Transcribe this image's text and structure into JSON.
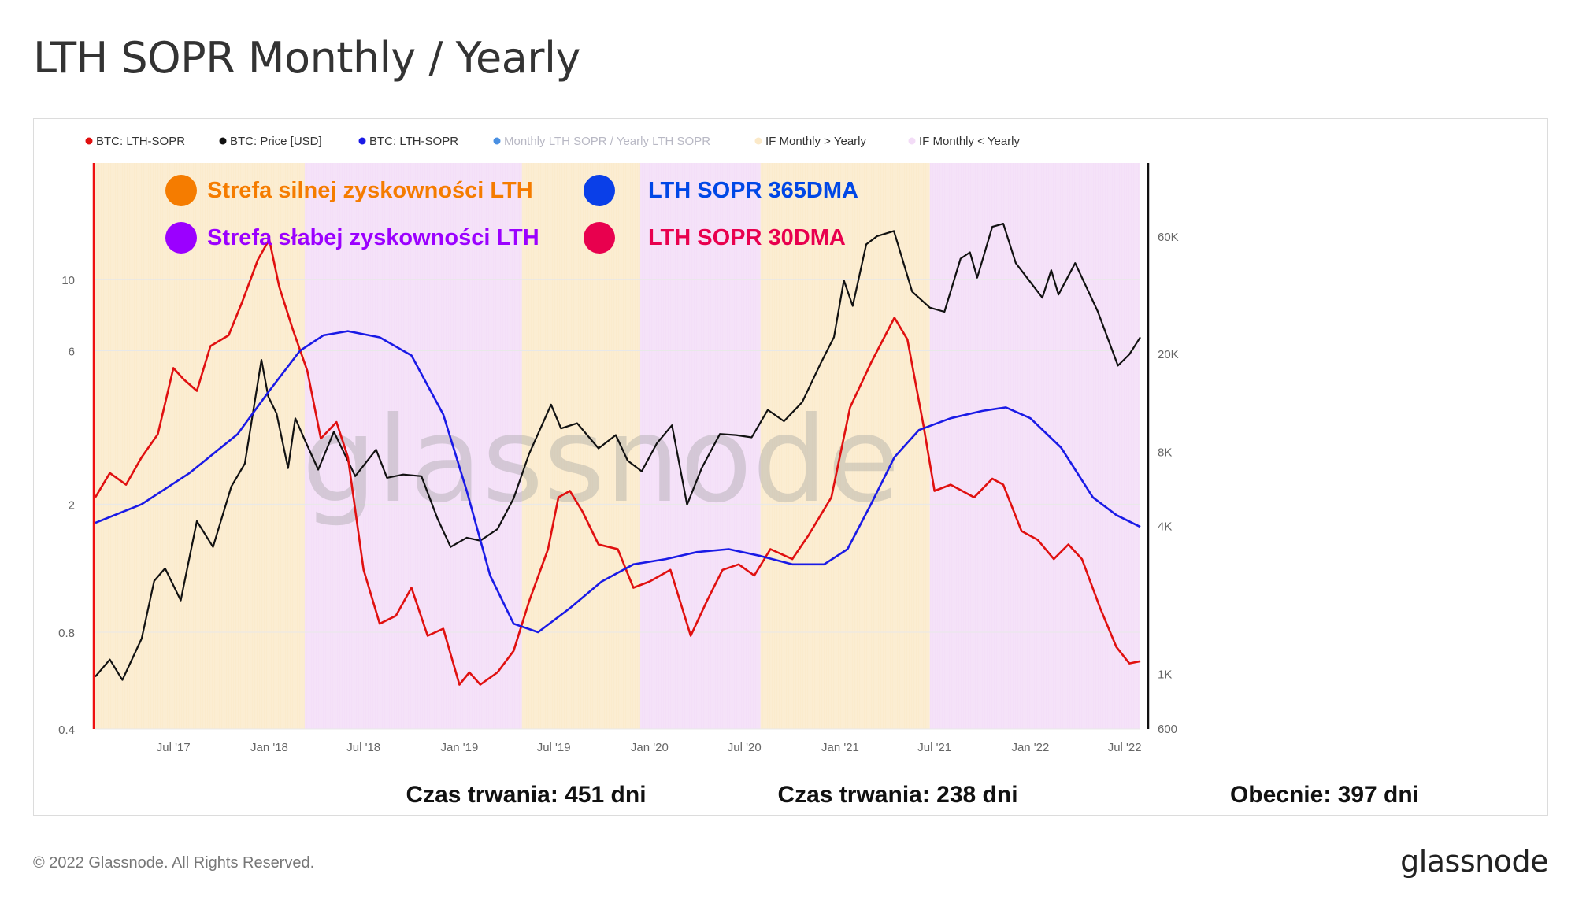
{
  "title": "LTH SOPR Monthly / Yearly",
  "footer": {
    "copyright": "© 2022 Glassnode. All Rights Reserved.",
    "logo": "glassnode"
  },
  "watermark": "glassnode",
  "legend": [
    {
      "label": "BTC: LTH-SOPR",
      "color": "#e01010",
      "muted": false
    },
    {
      "label": "BTC: Price [USD]",
      "color": "#111111",
      "muted": false
    },
    {
      "label": "BTC: LTH-SOPR",
      "color": "#1a1ae6",
      "muted": false
    },
    {
      "label": "Monthly LTH SOPR / Yearly LTH SOPR",
      "color": "#4a90e2",
      "muted": true
    },
    {
      "label": "IF Monthly > Yearly",
      "color": "#fbe9c8",
      "muted": false
    },
    {
      "label": "IF Monthly < Yearly",
      "color": "#f3dcf7",
      "muted": false
    }
  ],
  "annotations": {
    "zones": [
      {
        "label": "Strefa silnej zyskowności LTH",
        "color": "#f57c00"
      },
      {
        "label": "Strefa słabej zyskowności LTH",
        "color": "#9b00ff"
      }
    ],
    "lines": [
      {
        "label": "LTH SOPR 365DMA",
        "color": "#0047e6",
        "dot": "#0a3fe8"
      },
      {
        "label": "LTH SOPR 30DMA",
        "color": "#e8004e",
        "dot": "#e8004e"
      }
    ],
    "durations": [
      "Czas trwania: 451 dni",
      "Czas trwania: 238 dni",
      "Obecnie: 397 dni"
    ]
  },
  "chart_data": {
    "type": "line",
    "x_ticks": [
      "Jul '17",
      "Jan '18",
      "Jul '18",
      "Jan '19",
      "Jul '19",
      "Jan '20",
      "Jul '20",
      "Jan '21",
      "Jul '21",
      "Jan '22",
      "Jul '22"
    ],
    "y_left_ticks": [
      "10",
      "6",
      "2",
      "0.8",
      "0.4"
    ],
    "y_right_ticks": [
      "60K",
      "20K",
      "8K",
      "4K",
      "1K",
      "600"
    ],
    "y_left_scale": "log",
    "y_right_scale": "log",
    "x_range": [
      "2017-02-01",
      "2022-07-31"
    ],
    "background_regimes": [
      {
        "start": "2017-02-01",
        "end": "2018-03-10",
        "state": "IF Monthly > Yearly"
      },
      {
        "start": "2018-03-10",
        "end": "2019-05-01",
        "state": "IF Monthly < Yearly"
      },
      {
        "start": "2019-05-01",
        "end": "2019-12-14",
        "state": "IF Monthly > Yearly"
      },
      {
        "start": "2019-12-14",
        "end": "2020-08-01",
        "state": "IF Monthly < Yearly"
      },
      {
        "start": "2020-08-01",
        "end": "2021-06-22",
        "state": "IF Monthly > Yearly"
      },
      {
        "start": "2021-06-22",
        "end": "2022-07-31",
        "state": "IF Monthly < Yearly"
      }
    ],
    "series": [
      {
        "name": "BTC: Price [USD]",
        "axis": "right",
        "color": "#111111",
        "points": [
          [
            "2017-02-01",
            980
          ],
          [
            "2017-03-01",
            1150
          ],
          [
            "2017-03-25",
            950
          ],
          [
            "2017-05-01",
            1400
          ],
          [
            "2017-05-25",
            2400
          ],
          [
            "2017-06-15",
            2700
          ],
          [
            "2017-07-15",
            2000
          ],
          [
            "2017-08-15",
            4200
          ],
          [
            "2017-09-15",
            3300
          ],
          [
            "2017-10-20",
            5800
          ],
          [
            "2017-11-15",
            7200
          ],
          [
            "2017-12-17",
            19000
          ],
          [
            "2017-12-30",
            13500
          ],
          [
            "2018-01-15",
            11500
          ],
          [
            "2018-02-06",
            6900
          ],
          [
            "2018-02-20",
            11000
          ],
          [
            "2018-03-10",
            9000
          ],
          [
            "2018-04-05",
            6800
          ],
          [
            "2018-05-05",
            9700
          ],
          [
            "2018-06-15",
            6400
          ],
          [
            "2018-07-25",
            8200
          ],
          [
            "2018-08-15",
            6300
          ],
          [
            "2018-09-15",
            6500
          ],
          [
            "2018-10-20",
            6400
          ],
          [
            "2018-11-20",
            4300
          ],
          [
            "2018-12-15",
            3300
          ],
          [
            "2019-01-15",
            3600
          ],
          [
            "2019-02-10",
            3500
          ],
          [
            "2019-03-15",
            3900
          ],
          [
            "2019-04-15",
            5200
          ],
          [
            "2019-05-15",
            7900
          ],
          [
            "2019-06-26",
            12500
          ],
          [
            "2019-07-15",
            10000
          ],
          [
            "2019-08-15",
            10500
          ],
          [
            "2019-09-25",
            8300
          ],
          [
            "2019-10-28",
            9400
          ],
          [
            "2019-11-20",
            7400
          ],
          [
            "2019-12-17",
            6700
          ],
          [
            "2020-01-15",
            8700
          ],
          [
            "2020-02-13",
            10300
          ],
          [
            "2020-03-13",
            4900
          ],
          [
            "2020-04-10",
            6900
          ],
          [
            "2020-05-15",
            9500
          ],
          [
            "2020-06-15",
            9400
          ],
          [
            "2020-07-15",
            9200
          ],
          [
            "2020-08-15",
            11900
          ],
          [
            "2020-09-15",
            10700
          ],
          [
            "2020-10-20",
            12800
          ],
          [
            "2020-11-25",
            18500
          ],
          [
            "2020-12-20",
            23500
          ],
          [
            "2021-01-08",
            40000
          ],
          [
            "2021-01-25",
            31500
          ],
          [
            "2021-02-20",
            56000
          ],
          [
            "2021-03-13",
            60500
          ],
          [
            "2021-04-14",
            63500
          ],
          [
            "2021-05-19",
            36000
          ],
          [
            "2021-06-22",
            31000
          ],
          [
            "2021-07-20",
            29800
          ],
          [
            "2021-08-20",
            49000
          ],
          [
            "2021-09-07",
            52000
          ],
          [
            "2021-09-21",
            41000
          ],
          [
            "2021-10-20",
            66000
          ],
          [
            "2021-11-10",
            68000
          ],
          [
            "2021-12-04",
            47000
          ],
          [
            "2022-01-24",
            34000
          ],
          [
            "2022-02-10",
            44000
          ],
          [
            "2022-02-24",
            35000
          ],
          [
            "2022-03-28",
            47000
          ],
          [
            "2022-05-10",
            30000
          ],
          [
            "2022-06-18",
            18000
          ],
          [
            "2022-07-10",
            20000
          ],
          [
            "2022-07-31",
            23500
          ]
        ]
      },
      {
        "name": "BTC: LTH-SOPR",
        "axis": "left",
        "color": "#e01010",
        "note": "30DMA",
        "points": [
          [
            "2017-02-01",
            2.1
          ],
          [
            "2017-03-01",
            2.5
          ],
          [
            "2017-04-01",
            2.3
          ],
          [
            "2017-05-01",
            2.8
          ],
          [
            "2017-06-01",
            3.3
          ],
          [
            "2017-07-01",
            5.3
          ],
          [
            "2017-07-20",
            4.9
          ],
          [
            "2017-08-15",
            4.5
          ],
          [
            "2017-09-10",
            6.2
          ],
          [
            "2017-10-15",
            6.7
          ],
          [
            "2017-11-10",
            8.5
          ],
          [
            "2017-12-10",
            11.5
          ],
          [
            "2018-01-01",
            13.3
          ],
          [
            "2018-01-20",
            9.5
          ],
          [
            "2018-02-15",
            7.0
          ],
          [
            "2018-03-15",
            5.2
          ],
          [
            "2018-04-10",
            3.2
          ],
          [
            "2018-05-10",
            3.6
          ],
          [
            "2018-06-01",
            2.8
          ],
          [
            "2018-07-01",
            1.25
          ],
          [
            "2018-08-01",
            0.85
          ],
          [
            "2018-09-01",
            0.9
          ],
          [
            "2018-10-01",
            1.1
          ],
          [
            "2018-11-01",
            0.78
          ],
          [
            "2018-12-01",
            0.82
          ],
          [
            "2019-01-01",
            0.55
          ],
          [
            "2019-01-20",
            0.6
          ],
          [
            "2019-02-10",
            0.55
          ],
          [
            "2019-03-15",
            0.6
          ],
          [
            "2019-04-15",
            0.7
          ],
          [
            "2019-05-15",
            1.0
          ],
          [
            "2019-06-20",
            1.45
          ],
          [
            "2019-07-10",
            2.1
          ],
          [
            "2019-08-01",
            2.2
          ],
          [
            "2019-08-25",
            1.9
          ],
          [
            "2019-09-25",
            1.5
          ],
          [
            "2019-11-01",
            1.45
          ],
          [
            "2019-12-01",
            1.1
          ],
          [
            "2020-01-01",
            1.15
          ],
          [
            "2020-02-10",
            1.25
          ],
          [
            "2020-03-20",
            0.78
          ],
          [
            "2020-04-20",
            1.0
          ],
          [
            "2020-05-20",
            1.25
          ],
          [
            "2020-06-20",
            1.3
          ],
          [
            "2020-07-20",
            1.2
          ],
          [
            "2020-08-20",
            1.45
          ],
          [
            "2020-10-01",
            1.35
          ],
          [
            "2020-11-01",
            1.6
          ],
          [
            "2020-12-15",
            2.1
          ],
          [
            "2021-01-20",
            4.0
          ],
          [
            "2021-03-01",
            5.5
          ],
          [
            "2021-04-15",
            7.6
          ],
          [
            "2021-05-10",
            6.5
          ],
          [
            "2021-06-10",
            3.5
          ],
          [
            "2021-07-01",
            2.2
          ],
          [
            "2021-08-01",
            2.3
          ],
          [
            "2021-09-15",
            2.1
          ],
          [
            "2021-10-20",
            2.4
          ],
          [
            "2021-11-10",
            2.3
          ],
          [
            "2021-12-15",
            1.65
          ],
          [
            "2022-01-15",
            1.55
          ],
          [
            "2022-02-15",
            1.35
          ],
          [
            "2022-03-15",
            1.5
          ],
          [
            "2022-04-10",
            1.35
          ],
          [
            "2022-05-15",
            0.95
          ],
          [
            "2022-06-15",
            0.72
          ],
          [
            "2022-07-10",
            0.64
          ],
          [
            "2022-07-31",
            0.65
          ]
        ]
      },
      {
        "name": "BTC: LTH-SOPR",
        "axis": "left",
        "color": "#1a1ae6",
        "note": "365DMA",
        "points": [
          [
            "2017-02-01",
            1.75
          ],
          [
            "2017-05-01",
            2.0
          ],
          [
            "2017-08-01",
            2.5
          ],
          [
            "2017-11-01",
            3.3
          ],
          [
            "2018-01-01",
            4.5
          ],
          [
            "2018-03-01",
            6.0
          ],
          [
            "2018-04-15",
            6.7
          ],
          [
            "2018-06-01",
            6.9
          ],
          [
            "2018-08-01",
            6.6
          ],
          [
            "2018-10-01",
            5.8
          ],
          [
            "2018-12-01",
            3.8
          ],
          [
            "2019-01-15",
            2.2
          ],
          [
            "2019-03-01",
            1.2
          ],
          [
            "2019-04-15",
            0.85
          ],
          [
            "2019-06-01",
            0.8
          ],
          [
            "2019-08-01",
            0.95
          ],
          [
            "2019-10-01",
            1.15
          ],
          [
            "2019-12-01",
            1.3
          ],
          [
            "2020-02-01",
            1.35
          ],
          [
            "2020-04-01",
            1.42
          ],
          [
            "2020-06-01",
            1.45
          ],
          [
            "2020-08-01",
            1.38
          ],
          [
            "2020-10-01",
            1.3
          ],
          [
            "2020-12-01",
            1.3
          ],
          [
            "2021-01-15",
            1.45
          ],
          [
            "2021-03-01",
            2.0
          ],
          [
            "2021-04-15",
            2.8
          ],
          [
            "2021-06-01",
            3.4
          ],
          [
            "2021-08-01",
            3.7
          ],
          [
            "2021-10-01",
            3.9
          ],
          [
            "2021-11-15",
            4.0
          ],
          [
            "2022-01-01",
            3.7
          ],
          [
            "2022-03-01",
            3.0
          ],
          [
            "2022-05-01",
            2.1
          ],
          [
            "2022-06-15",
            1.85
          ],
          [
            "2022-07-31",
            1.7
          ]
        ]
      }
    ]
  }
}
